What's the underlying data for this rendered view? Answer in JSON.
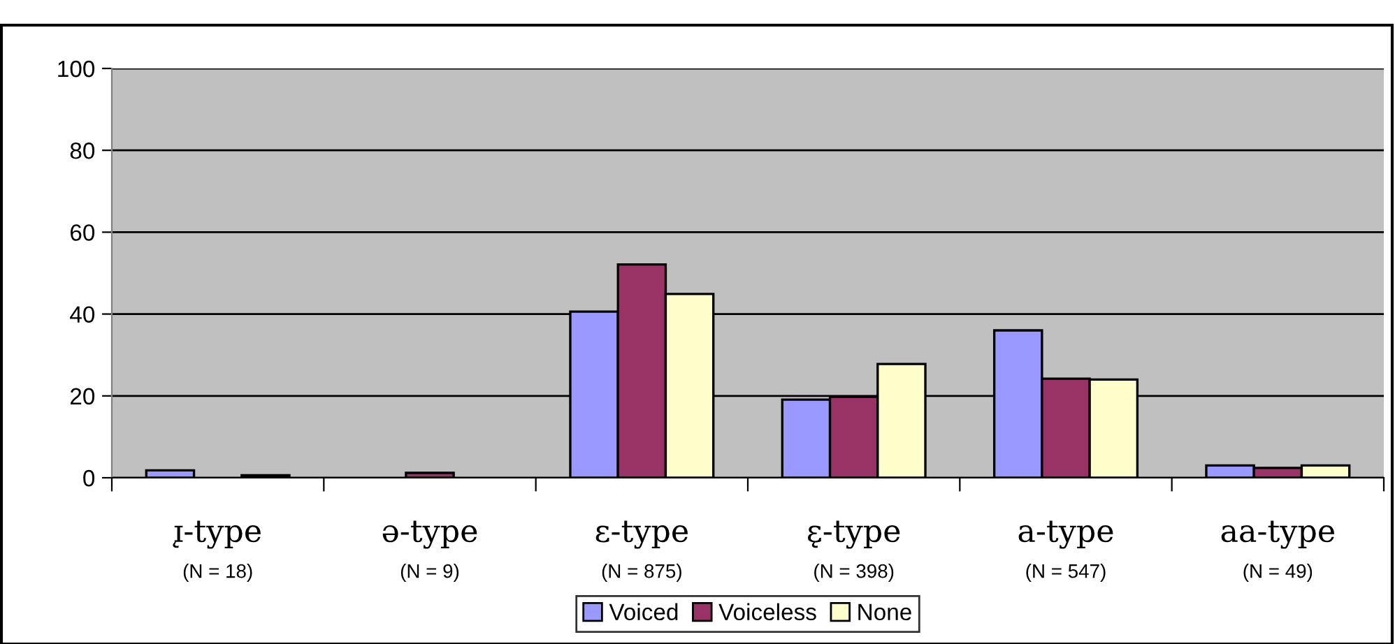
{
  "chart_data": {
    "type": "bar",
    "categories": [
      "ɪ̨-type\n(N = 18)",
      "ə-type\n(N = 9)",
      "ɛ-type\n(N = 875)",
      "ɛ̨-type\n(N = 398)",
      "a-type\n(N = 547)",
      "aa-type\n(N = 49)"
    ],
    "series": [
      {
        "name": "Voiced",
        "color": "#9999ff",
        "values": [
          1.8,
          null,
          40.6,
          19.1,
          36.0,
          3.0
        ]
      },
      {
        "name": "Voiceless",
        "color": "#993366",
        "values": [
          null,
          1.2,
          52.1,
          19.8,
          24.2,
          2.4
        ]
      },
      {
        "name": "None",
        "color": "#ffffcc",
        "values": [
          0.6,
          null,
          44.9,
          27.8,
          24.0,
          3.0
        ]
      }
    ],
    "ylim": [
      0,
      100
    ],
    "yticks": [
      0,
      20,
      40,
      60,
      80,
      100
    ],
    "grid": "y",
    "legend": "bottom"
  }
}
